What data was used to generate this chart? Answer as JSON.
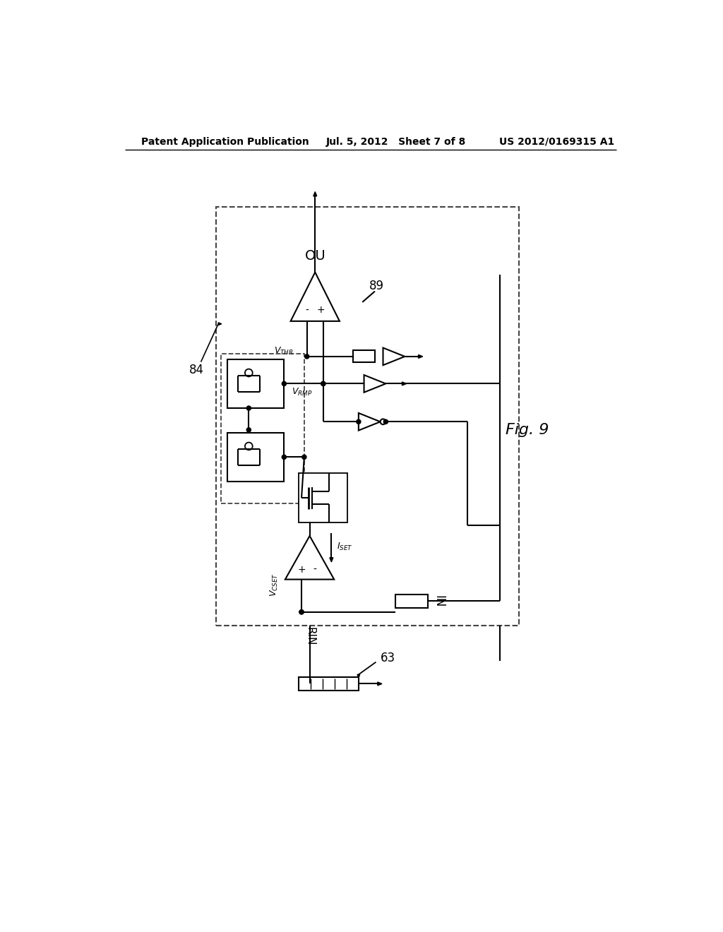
{
  "title_left": "Patent Application Publication",
  "title_center": "Jul. 5, 2012   Sheet 7 of 8",
  "title_right": "US 2012/0169315 A1",
  "fig_label": "Fig. 9",
  "label_84": "84",
  "label_89": "89",
  "label_63": "63",
  "label_OU": "OU",
  "label_RIN": "RIN",
  "label_IN": "IN",
  "bg_color": "#ffffff",
  "line_color": "#000000"
}
